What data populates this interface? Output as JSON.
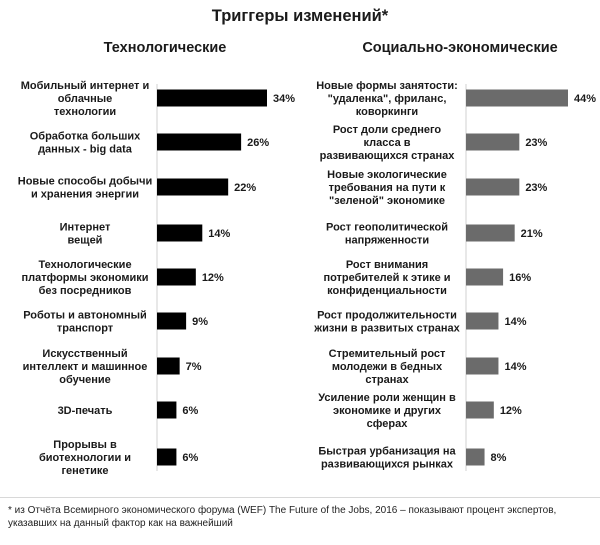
{
  "title": "Триггеры изменений*",
  "footnote": "* из Отчёта Всемирного экономического форума (WEF) The Future of the Jobs, 2016 – показывают процент экспертов, указавших на данный фактор как на важнейший",
  "colors": {
    "left_bar": "#000000",
    "right_bar": "#6b6b6b",
    "text": "#1a1a1a"
  },
  "chart_data": [
    {
      "type": "bar",
      "orientation": "horizontal",
      "title": "Технологические",
      "categories": [
        "Мобильный интернет и облачные технологии",
        "Обработка больших данных - big data",
        "Новые способы добычи и хранения энергии",
        "Интернет вещей",
        "Технологические платформы экономики без посредников",
        "Роботы и автономный транспорт",
        "Искусственный интеллект и машинное обучение",
        "3D-печать",
        "Прорывы в биотехнологии и генетике"
      ],
      "label_lines": [
        [
          "Мобильный интернет и",
          "облачные",
          "технологии"
        ],
        [
          "Обработка больших",
          "данных - big data"
        ],
        [
          "Новые способы добычи",
          "и хранения энергии"
        ],
        [
          "Интернет",
          "вещей"
        ],
        [
          "Технологические",
          "платформы экономики",
          "без посредников"
        ],
        [
          "Роботы и автономный",
          "транспорт"
        ],
        [
          "Искусственный",
          "интеллект и машинное",
          "обучение"
        ],
        [
          "3D-печать"
        ],
        [
          "Прорывы в",
          "биотехнологии и",
          "генетике"
        ]
      ],
      "values": [
        34,
        26,
        22,
        14,
        12,
        9,
        7,
        6,
        6
      ],
      "value_labels": [
        "34%",
        "26%",
        "22%",
        "14%",
        "12%",
        "9%",
        "7%",
        "6%",
        "6%"
      ],
      "unit": "%"
    },
    {
      "type": "bar",
      "orientation": "horizontal",
      "title": "Социально-экономические",
      "categories": [
        "Новые формы занятости: \"удаленка\", фриланс, коворкинги",
        "Рост доли среднего класса в развивающихся странах",
        "Новые экологические требования на пути к \"зеленой\" экономике",
        "Рост геополитической напряженности",
        "Рост внимания потребителей к этике и конфиденциальности",
        "Рост продолжительности жизни в развитых странах",
        "Стремительный рост молодежи в бедных странах",
        "Усиление роли женщин в экономике и других сферах",
        "Быстрая урбанизация на развивающихся рынках"
      ],
      "label_lines": [
        [
          "Новые формы занятости:",
          "\"удаленка\", фриланс,",
          "коворкинги"
        ],
        [
          "Рост доли среднего",
          "класса в",
          "развивающихся странах"
        ],
        [
          "Новые экологические",
          "требования на пути к",
          "\"зеленой\" экономике"
        ],
        [
          "Рост геополитической",
          "напряженности"
        ],
        [
          "Рост внимания",
          "потребителей к этике и",
          "конфиденциальности"
        ],
        [
          "Рост продолжительности",
          "жизни в развитых странах"
        ],
        [
          "Стремительный рост",
          "молодежи в бедных",
          "странах"
        ],
        [
          "Усиление роли женщин в",
          "экономике и других",
          "сферах"
        ],
        [
          "Быстрая урбанизация на",
          "развивающихся рынках"
        ]
      ],
      "values": [
        44,
        23,
        23,
        21,
        16,
        14,
        14,
        12,
        8
      ],
      "value_labels": [
        "44%",
        "23%",
        "23%",
        "21%",
        "16%",
        "14%",
        "14%",
        "12%",
        "8%"
      ],
      "unit": "%"
    }
  ]
}
